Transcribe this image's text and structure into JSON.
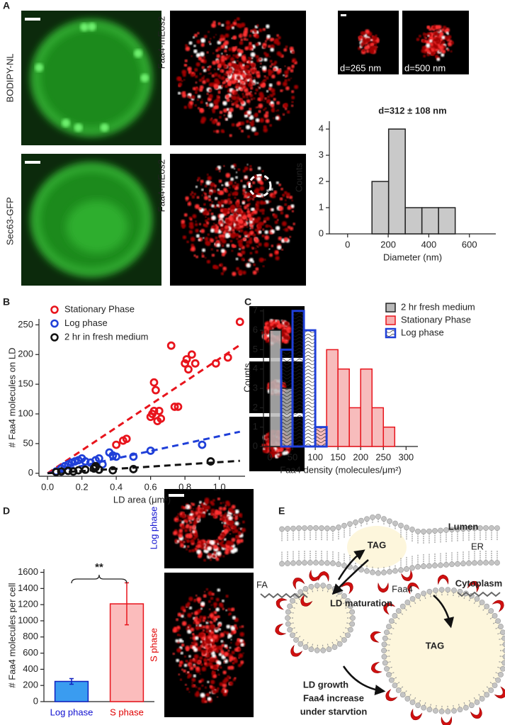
{
  "panel_labels": [
    "A",
    "B",
    "C",
    "D",
    "E"
  ],
  "images": {
    "a_labels": [
      "BODIPY-NL",
      "Faa4-mEos2",
      "Sec63-GFP",
      "Faa4-mEos2"
    ],
    "a_sizes": [
      "d=265 nm",
      "d=500 nm"
    ],
    "d_labels": [
      "Log phase",
      "S phase"
    ]
  },
  "chart_data": [
    {
      "type": "histogram",
      "title": "d=312 ± 108 nm",
      "bins": [
        120,
        202,
        284,
        366,
        448,
        530
      ],
      "values": [
        2,
        4,
        1,
        1,
        1
      ],
      "color": "#c0c0c0",
      "xlim": [
        -90,
        730
      ],
      "xticks": [
        0,
        200,
        400,
        600
      ],
      "ylim": [
        0,
        4.3
      ],
      "yticks": [
        0,
        1,
        2,
        3,
        4
      ],
      "xlabel": "Diameter (nm)",
      "ylabel": "Counts"
    },
    {
      "type": "scatter",
      "legend": "upper left",
      "series": [
        {
          "name": "Stationary Phase",
          "color": "#e8141c",
          "x": [
            0.4,
            0.44,
            0.46,
            0.6,
            0.61,
            0.62,
            0.63,
            0.64,
            0.65,
            0.62,
            0.66,
            0.72,
            0.74,
            0.76,
            0.8,
            0.81,
            0.82,
            0.84,
            0.86,
            0.98,
            1.05,
            1.12
          ],
          "values": [
            48,
            55,
            58,
            95,
            100,
            105,
            140,
            88,
            105,
            153,
            92,
            215,
            112,
            112,
            185,
            192,
            175,
            200,
            185,
            185,
            195,
            255
          ]
        },
        {
          "name": "Log phase",
          "color": "#1f3fd8",
          "x": [
            0.05,
            0.08,
            0.1,
            0.12,
            0.14,
            0.16,
            0.18,
            0.2,
            0.22,
            0.25,
            0.28,
            0.3,
            0.32,
            0.36,
            0.38,
            0.4,
            0.5,
            0.6,
            0.9
          ],
          "values": [
            3,
            8,
            12,
            15,
            18,
            20,
            22,
            25,
            20,
            18,
            22,
            25,
            15,
            35,
            30,
            28,
            28,
            38,
            48
          ]
        },
        {
          "name": "2 hr in fresh medium",
          "color": "#111111",
          "x": [
            0.05,
            0.08,
            0.12,
            0.15,
            0.18,
            0.22,
            0.27,
            0.28,
            0.28,
            0.3,
            0.38,
            0.5,
            0.95
          ],
          "values": [
            2,
            3,
            4,
            3,
            5,
            6,
            8,
            10,
            12,
            6,
            5,
            7,
            20
          ]
        }
      ],
      "fits": [
        {
          "color": "#e8141c",
          "x": [
            0,
            1.12
          ],
          "values": [
            0,
            216
          ]
        },
        {
          "color": "#1f3fd8",
          "x": [
            0,
            1.12
          ],
          "values": [
            0,
            70
          ]
        },
        {
          "color": "#111111",
          "x": [
            0,
            1.12
          ],
          "values": [
            0,
            21
          ]
        }
      ],
      "xlim": [
        -0.05,
        1.15
      ],
      "xticks": [
        {
          "value": 0,
          "label": "0.0"
        },
        0.2,
        0.4,
        0.6,
        0.8,
        {
          "value": 1,
          "label": "1.0"
        }
      ],
      "ylim": [
        -5,
        260
      ],
      "yticks": [
        0,
        50,
        100,
        150,
        200,
        250
      ],
      "xlabel": "LD area (μm²)",
      "ylabel": "# Faa4 molecules on LD"
    },
    {
      "type": "histogram",
      "legend": "upper right",
      "bins": [
        0,
        25,
        50,
        75,
        100,
        125,
        150,
        175,
        200,
        225,
        250,
        275,
        300
      ],
      "series": [
        {
          "name": "2 hr fresh medium",
          "color": "#b8b8b8",
          "edge": "#222222",
          "values": [
            6,
            3,
            0,
            0,
            0,
            0,
            0,
            0,
            0,
            0,
            0,
            0
          ]
        },
        {
          "name": "Stationary Phase",
          "color": "#f6b0b0",
          "edge": "#e8141c",
          "values": [
            0,
            0,
            0,
            0,
            1,
            5,
            4,
            2,
            4,
            2,
            1,
            0
          ]
        },
        {
          "name": "Log phase",
          "color": "#1f3fd8",
          "edge": "#1f3fd8",
          "hatch": true,
          "values": [
            0,
            5,
            7,
            6,
            1,
            0,
            0,
            0,
            0,
            0,
            0,
            0
          ]
        }
      ],
      "xlim": [
        -14,
        326
      ],
      "xticks": [
        0,
        50,
        100,
        150,
        200,
        250,
        300
      ],
      "ylim": [
        0,
        7.1
      ],
      "yticks": [
        0,
        1,
        2,
        3,
        4,
        5,
        6,
        7
      ],
      "xlabel": "Faa4 density (molecules/μm²)",
      "ylabel": "Counts"
    },
    {
      "type": "bar",
      "categories": [
        "Log phase",
        "S phase"
      ],
      "values": [
        250,
        1210
      ],
      "errors": [
        35,
        260
      ],
      "colors": [
        "#3a9cf0",
        "#fbbcbc"
      ],
      "edge_colors": [
        "#1020c0",
        "#e8141c"
      ],
      "category_label_colors": [
        "#1010d0",
        "#e00000"
      ],
      "annotation": "**",
      "ylim": [
        0,
        1640
      ],
      "yticks": [
        0,
        200,
        400,
        600,
        800,
        1000,
        1200,
        1400,
        1600
      ],
      "ylabel": "# Faa4 molecules per cell"
    }
  ],
  "diagram": {
    "labels": [
      "Lumen",
      "ER",
      "TAG",
      "FA",
      "Faa4",
      "Cytoplasm",
      "LD maturation",
      "TAG",
      "LD growth",
      "Faa4 increase",
      "under starvtion"
    ]
  }
}
